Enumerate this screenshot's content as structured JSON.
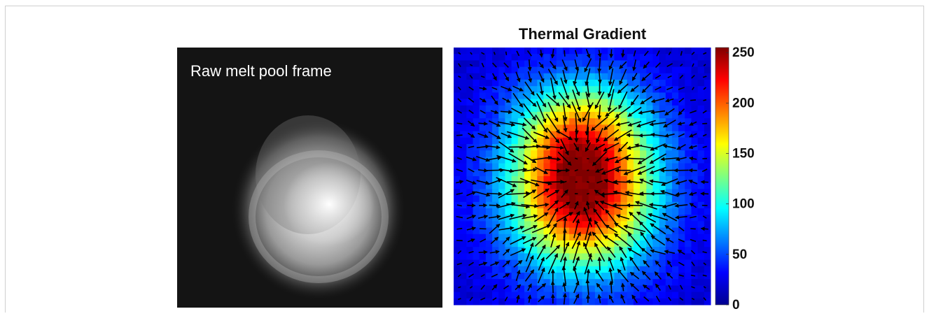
{
  "left_panel": {
    "label": "Raw melt pool frame"
  },
  "right_panel": {
    "title": "Thermal Gradient",
    "colorbar": {
      "lim": [
        0,
        255
      ],
      "ticks": [
        0,
        50,
        100,
        150,
        200,
        250
      ]
    }
  }
}
